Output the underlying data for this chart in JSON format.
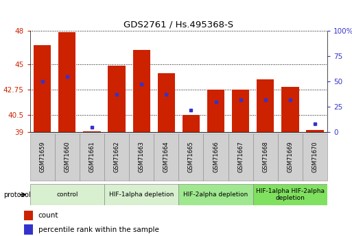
{
  "title": "GDS2761 / Hs.495368-S",
  "samples": [
    "GSM71659",
    "GSM71660",
    "GSM71661",
    "GSM71662",
    "GSM71663",
    "GSM71664",
    "GSM71665",
    "GSM71666",
    "GSM71667",
    "GSM71668",
    "GSM71669",
    "GSM71670"
  ],
  "counts": [
    46.7,
    47.85,
    39.1,
    44.9,
    46.3,
    44.2,
    40.5,
    42.75,
    42.75,
    43.7,
    43.0,
    39.2
  ],
  "percentile_pct": [
    50,
    55,
    5,
    37,
    47,
    37,
    22,
    30,
    32,
    32,
    32,
    8
  ],
  "ylim_left": [
    39,
    48
  ],
  "ylim_right": [
    0,
    100
  ],
  "yticks_left": [
    39,
    40.5,
    42.75,
    45,
    48
  ],
  "yticks_right": [
    0,
    25,
    50,
    75,
    100
  ],
  "bar_color": "#cc2200",
  "dot_color": "#3333cc",
  "protocol_groups": [
    {
      "label": "control",
      "start": 0,
      "end": 3,
      "color": "#d8f0d0"
    },
    {
      "label": "HIF-1alpha depletion",
      "start": 3,
      "end": 6,
      "color": "#d8f0d0"
    },
    {
      "label": "HIF-2alpha depletion",
      "start": 6,
      "end": 9,
      "color": "#a0e890"
    },
    {
      "label": "HIF-1alpha HIF-2alpha\ndepletion",
      "start": 9,
      "end": 12,
      "color": "#80e060"
    }
  ],
  "legend_count_label": "count",
  "legend_percentile_label": "percentile rank within the sample",
  "protocol_label": "protocol"
}
